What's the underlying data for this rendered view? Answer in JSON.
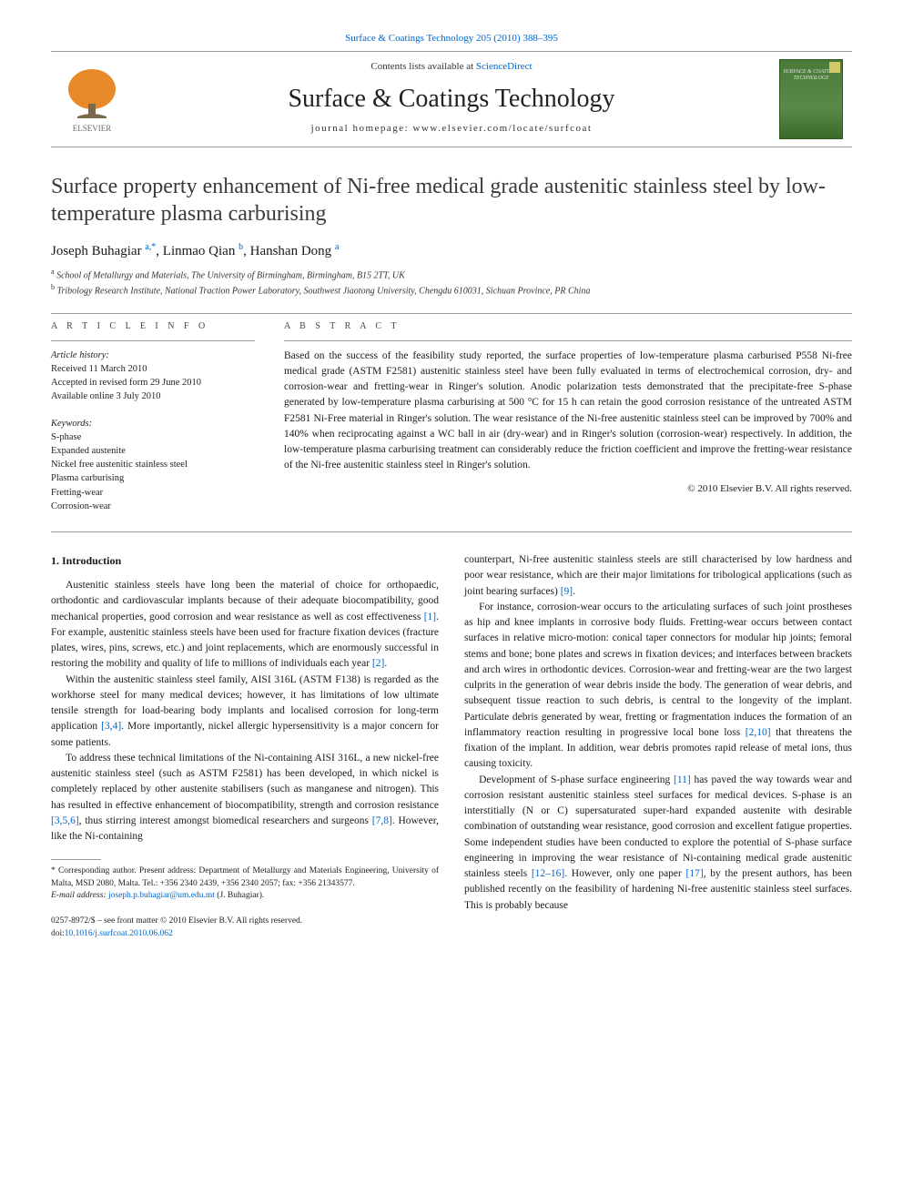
{
  "header": {
    "citation_link": "Surface & Coatings Technology 205 (2010) 388–395",
    "contents_prefix": "Contents lists available at ",
    "contents_link": "ScienceDirect",
    "journal_name": "Surface & Coatings Technology",
    "homepage_prefix": "journal homepage: ",
    "homepage_url": "www.elsevier.com/locate/surfcoat",
    "cover_text": "SURFACE & COATINGS TECHNOLOGY"
  },
  "logo": {
    "tree_fill": "#e98a2a",
    "trunk_fill": "#7a6a4a",
    "elsevier_label": "ELSEVIER",
    "label_color": "#6a6a6a"
  },
  "article": {
    "title": "Surface property enhancement of Ni-free medical grade austenitic stainless steel by low-temperature plasma carburising",
    "authors_html": "Joseph Buhagiar <span class='sup'>a,</span><span class='sup'>*</span>, Linmao Qian <span class='sup'>b</span>, Hanshan Dong <span class='sup'>a</span>",
    "affiliations": [
      {
        "sup": "a",
        "text": "School of Metallurgy and Materials, The University of Birmingham, Birmingham, B15 2TT, UK"
      },
      {
        "sup": "b",
        "text": "Tribology Research Institute, National Traction Power Laboratory, Southwest Jiaotong University, Chengdu 610031, Sichuan Province, PR China"
      }
    ]
  },
  "info": {
    "heading": "A R T I C L E   I N F O",
    "history_label": "Article history:",
    "received": "Received 11 March 2010",
    "accepted": "Accepted in revised form 29 June 2010",
    "online": "Available online 3 July 2010",
    "keywords_label": "Keywords:",
    "keywords": [
      "S-phase",
      "Expanded austenite",
      "Nickel free austenitic stainless steel",
      "Plasma carburising",
      "Fretting-wear",
      "Corrosion-wear"
    ]
  },
  "abstract": {
    "heading": "A B S T R A C T",
    "text": "Based on the success of the feasibility study reported, the surface properties of low-temperature plasma carburised P558 Ni-free medical grade (ASTM F2581) austenitic stainless steel have been fully evaluated in terms of electrochemical corrosion, dry- and corrosion-wear and fretting-wear in Ringer's solution. Anodic polarization tests demonstrated that the precipitate-free S-phase generated by low-temperature plasma carburising at 500 °C for 15 h can retain the good corrosion resistance of the untreated ASTM F2581 Ni-Free material in Ringer's solution. The wear resistance of the Ni-free austenitic stainless steel can be improved by 700% and 140% when reciprocating against a WC ball in air (dry-wear) and in Ringer's solution (corrosion-wear) respectively. In addition, the low-temperature plasma carburising treatment can considerably reduce the friction coefficient and improve the fretting-wear resistance of the Ni-free austenitic stainless steel in Ringer's solution.",
    "copyright": "© 2010 Elsevier B.V. All rights reserved."
  },
  "body": {
    "intro_heading": "1. Introduction",
    "p1": "Austenitic stainless steels have long been the material of choice for orthopaedic, orthodontic and cardiovascular implants because of their adequate biocompatibility, good mechanical properties, good corrosion and wear resistance as well as cost effectiveness [1]. For example, austenitic stainless steels have been used for fracture fixation devices (fracture plates, wires, pins, screws, etc.) and joint replacements, which are enormously successful in restoring the mobility and quality of life to millions of individuals each year [2].",
    "p2": "Within the austenitic stainless steel family, AISI 316L (ASTM F138) is regarded as the workhorse steel for many medical devices; however, it has limitations of low ultimate tensile strength for load-bearing body implants and localised corrosion for long-term application [3,4]. More importantly, nickel allergic hypersensitivity is a major concern for some patients.",
    "p3": "To address these technical limitations of the Ni-containing AISI 316L, a new nickel-free austenitic stainless steel (such as ASTM F2581) has been developed, in which nickel is completely replaced by other austenite stabilisers (such as manganese and nitrogen). This has resulted in effective enhancement of biocompatibility, strength and corrosion resistance [3,5,6], thus stirring interest amongst biomedical researchers and surgeons [7,8]. However, like the Ni-containing",
    "p4": "counterpart, Ni-free austenitic stainless steels are still characterised by low hardness and poor wear resistance, which are their major limitations for tribological applications (such as joint bearing surfaces) [9].",
    "p5": "For instance, corrosion-wear occurs to the articulating surfaces of such joint prostheses as hip and knee implants in corrosive body fluids. Fretting-wear occurs between contact surfaces in relative micro-motion: conical taper connectors for modular hip joints; femoral stems and bone; bone plates and screws in fixation devices; and interfaces between brackets and arch wires in orthodontic devices. Corrosion-wear and fretting-wear are the two largest culprits in the generation of wear debris inside the body. The generation of wear debris, and subsequent tissue reaction to such debris, is central to the longevity of the implant. Particulate debris generated by wear, fretting or fragmentation induces the formation of an inflammatory reaction resulting in progressive local bone loss [2,10] that threatens the fixation of the implant. In addition, wear debris promotes rapid release of metal ions, thus causing toxicity.",
    "p6": "Development of S-phase surface engineering [11] has paved the way towards wear and corrosion resistant austenitic stainless steel surfaces for medical devices. S-phase is an interstitially (N or C) supersaturated super-hard expanded austenite with desirable combination of outstanding wear resistance, good corrosion and excellent fatigue properties. Some independent studies have been conducted to explore the potential of S-phase surface engineering in improving the wear resistance of Ni-containing medical grade austenitic stainless steels [12–16]. However, only one paper [17], by the present authors, has been published recently on the feasibility of hardening Ni-free austenitic stainless steel surfaces. This is probably because"
  },
  "footnotes": {
    "corr": "* Corresponding author. Present address: Department of Metallurgy and Materials Engineering, University of Malta, MSD 2080, Malta. Tel.: +356 2340 2439, +356 2340 2057; fax: +356 21343577.",
    "email_label": "E-mail address: ",
    "email": "joseph.p.buhagiar@um.edu.mt",
    "email_suffix": " (J. Buhagiar)."
  },
  "bottom": {
    "front_matter": "0257-8972/$ – see front matter © 2010 Elsevier B.V. All rights reserved.",
    "doi_prefix": "doi:",
    "doi": "10.1016/j.surfcoat.2010.06.062"
  },
  "colors": {
    "link": "#0066cc",
    "rule": "#999999",
    "text": "#1a1a1a"
  }
}
